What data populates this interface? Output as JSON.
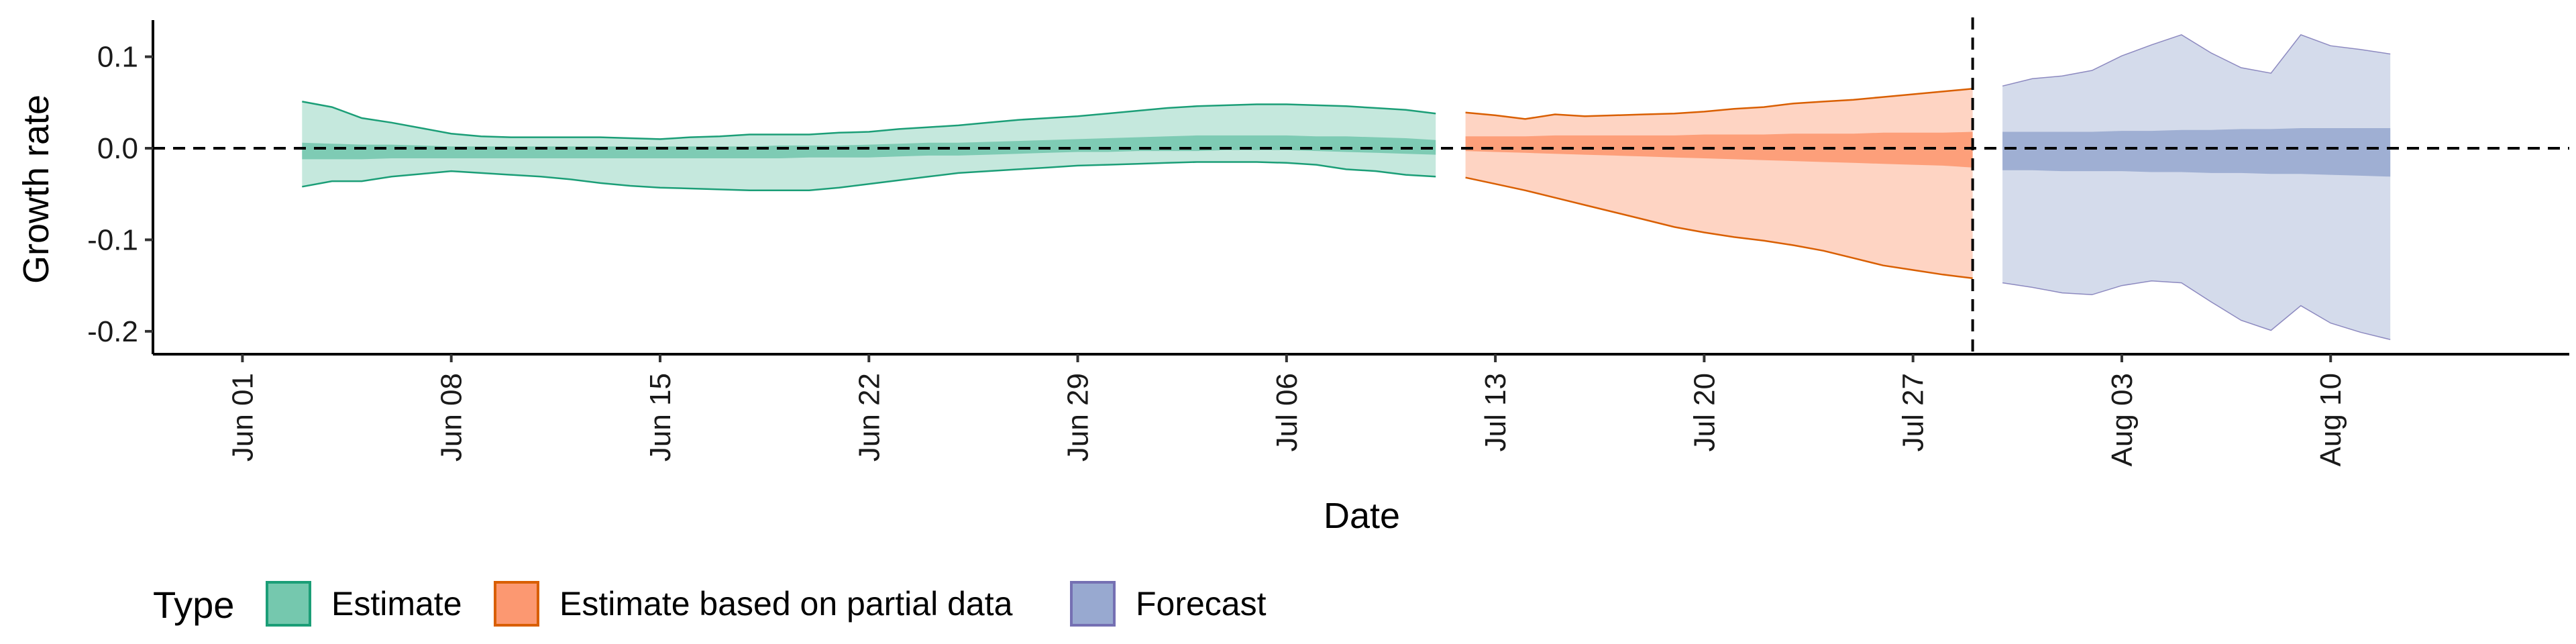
{
  "chart_data": {
    "type": "area",
    "title": "",
    "xlabel": "Date",
    "ylabel": "Growth rate",
    "xlim": [
      "2020-05-29",
      "2020-08-18"
    ],
    "ylim": [
      -0.225,
      0.14
    ],
    "x_ticks": [
      "2020-06-01",
      "2020-06-08",
      "2020-06-15",
      "2020-06-22",
      "2020-06-29",
      "2020-07-06",
      "2020-07-13",
      "2020-07-20",
      "2020-07-27",
      "2020-08-03",
      "2020-08-10"
    ],
    "x_tick_labels": [
      "Jun 01",
      "Jun 08",
      "Jun 15",
      "Jun 22",
      "Jun 29",
      "Jul 06",
      "Jul 13",
      "Jul 20",
      "Jul 27",
      "Aug 03",
      "Aug 10"
    ],
    "y_ticks": [
      0.1,
      0.0,
      -0.1,
      -0.2
    ],
    "y_tick_labels": [
      "0.1",
      "0.0",
      "-0.1",
      "-0.2"
    ],
    "hline": 0.0,
    "vline": "2020-07-29",
    "grid": false,
    "legend": {
      "title": "Type",
      "position": "bottom-left",
      "items": [
        "Estimate",
        "Estimate based on partial data",
        "Forecast"
      ]
    },
    "series": [
      {
        "name": "Estimate",
        "color": "#1b9e77",
        "fill": "#66c2a5",
        "x": [
          "2020-06-03",
          "2020-06-04",
          "2020-06-05",
          "2020-06-06",
          "2020-06-07",
          "2020-06-08",
          "2020-06-09",
          "2020-06-10",
          "2020-06-11",
          "2020-06-12",
          "2020-06-13",
          "2020-06-14",
          "2020-06-15",
          "2020-06-16",
          "2020-06-17",
          "2020-06-18",
          "2020-06-19",
          "2020-06-20",
          "2020-06-21",
          "2020-06-22",
          "2020-06-23",
          "2020-06-24",
          "2020-06-25",
          "2020-06-26",
          "2020-06-27",
          "2020-06-28",
          "2020-06-29",
          "2020-06-30",
          "2020-07-01",
          "2020-07-02",
          "2020-07-03",
          "2020-07-04",
          "2020-07-05",
          "2020-07-06",
          "2020-07-07",
          "2020-07-08",
          "2020-07-09",
          "2020-07-10",
          "2020-07-11"
        ],
        "upper90": [
          0.051,
          0.045,
          0.033,
          0.028,
          0.022,
          0.016,
          0.013,
          0.012,
          0.012,
          0.012,
          0.012,
          0.011,
          0.01,
          0.012,
          0.013,
          0.015,
          0.015,
          0.015,
          0.017,
          0.018,
          0.021,
          0.023,
          0.025,
          0.028,
          0.031,
          0.033,
          0.035,
          0.038,
          0.041,
          0.044,
          0.046,
          0.047,
          0.048,
          0.048,
          0.047,
          0.046,
          0.044,
          0.042,
          0.038
        ],
        "upper50": [
          0.006,
          0.005,
          0.004,
          0.004,
          0.003,
          0.002,
          0.002,
          0.002,
          0.002,
          0.002,
          0.002,
          0.002,
          0.002,
          0.002,
          0.002,
          0.002,
          0.003,
          0.003,
          0.003,
          0.004,
          0.005,
          0.006,
          0.006,
          0.007,
          0.008,
          0.009,
          0.01,
          0.011,
          0.012,
          0.013,
          0.014,
          0.014,
          0.014,
          0.014,
          0.013,
          0.013,
          0.012,
          0.011,
          0.009
        ],
        "lower50": [
          -0.012,
          -0.012,
          -0.012,
          -0.011,
          -0.011,
          -0.011,
          -0.011,
          -0.011,
          -0.011,
          -0.011,
          -0.011,
          -0.011,
          -0.011,
          -0.011,
          -0.011,
          -0.011,
          -0.011,
          -0.01,
          -0.01,
          -0.01,
          -0.009,
          -0.008,
          -0.008,
          -0.007,
          -0.006,
          -0.005,
          -0.004,
          -0.004,
          -0.003,
          -0.003,
          -0.003,
          -0.002,
          -0.002,
          -0.002,
          -0.003,
          -0.004,
          -0.005,
          -0.006,
          -0.007
        ],
        "lower90": [
          -0.042,
          -0.036,
          -0.036,
          -0.031,
          -0.028,
          -0.025,
          -0.027,
          -0.029,
          -0.031,
          -0.034,
          -0.038,
          -0.041,
          -0.043,
          -0.044,
          -0.045,
          -0.046,
          -0.046,
          -0.046,
          -0.043,
          -0.039,
          -0.035,
          -0.031,
          -0.027,
          -0.025,
          -0.023,
          -0.021,
          -0.019,
          -0.018,
          -0.017,
          -0.016,
          -0.015,
          -0.015,
          -0.015,
          -0.016,
          -0.018,
          -0.023,
          -0.025,
          -0.029,
          -0.031
        ]
      },
      {
        "name": "Estimate based on partial data",
        "color": "#d95f02",
        "fill": "#fc8d62",
        "x": [
          "2020-07-12",
          "2020-07-13",
          "2020-07-14",
          "2020-07-15",
          "2020-07-16",
          "2020-07-17",
          "2020-07-18",
          "2020-07-19",
          "2020-07-20",
          "2020-07-21",
          "2020-07-22",
          "2020-07-23",
          "2020-07-24",
          "2020-07-25",
          "2020-07-26",
          "2020-07-27",
          "2020-07-28",
          "2020-07-29"
        ],
        "upper90": [
          0.039,
          0.036,
          0.032,
          0.037,
          0.035,
          0.036,
          0.037,
          0.038,
          0.04,
          0.043,
          0.045,
          0.049,
          0.051,
          0.053,
          0.056,
          0.059,
          0.062,
          0.065
        ],
        "upper50": [
          0.013,
          0.013,
          0.013,
          0.014,
          0.014,
          0.014,
          0.014,
          0.014,
          0.015,
          0.015,
          0.015,
          0.016,
          0.016,
          0.016,
          0.017,
          0.017,
          0.017,
          0.018
        ],
        "lower50": [
          -0.003,
          -0.004,
          -0.005,
          -0.006,
          -0.007,
          -0.008,
          -0.009,
          -0.01,
          -0.011,
          -0.012,
          -0.013,
          -0.014,
          -0.015,
          -0.016,
          -0.017,
          -0.018,
          -0.019,
          -0.021
        ],
        "lower90": [
          -0.032,
          -0.039,
          -0.046,
          -0.054,
          -0.062,
          -0.07,
          -0.078,
          -0.086,
          -0.092,
          -0.097,
          -0.101,
          -0.106,
          -0.112,
          -0.12,
          -0.128,
          -0.133,
          -0.138,
          -0.142
        ]
      },
      {
        "name": "Forecast",
        "color": "#7570b3",
        "fill": "#8da0cb",
        "x": [
          "2020-07-30",
          "2020-07-31",
          "2020-08-01",
          "2020-08-02",
          "2020-08-03",
          "2020-08-04",
          "2020-08-05",
          "2020-08-06",
          "2020-08-07",
          "2020-08-08",
          "2020-08-09",
          "2020-08-10",
          "2020-08-11",
          "2020-08-12"
        ],
        "upper90": [
          0.068,
          0.076,
          0.079,
          0.085,
          0.101,
          0.113,
          0.124,
          0.104,
          0.088,
          0.082,
          0.124,
          0.112,
          0.108,
          0.103
        ],
        "upper50": [
          0.018,
          0.018,
          0.018,
          0.018,
          0.019,
          0.019,
          0.02,
          0.02,
          0.021,
          0.021,
          0.022,
          0.022,
          0.022,
          0.022
        ],
        "lower50": [
          -0.024,
          -0.024,
          -0.025,
          -0.025,
          -0.025,
          -0.026,
          -0.026,
          -0.027,
          -0.027,
          -0.028,
          -0.028,
          -0.029,
          -0.03,
          -0.031
        ],
        "lower90": [
          -0.147,
          -0.152,
          -0.158,
          -0.16,
          -0.15,
          -0.145,
          -0.147,
          -0.168,
          -0.188,
          -0.199,
          -0.172,
          -0.191,
          -0.201,
          -0.209
        ]
      }
    ]
  }
}
